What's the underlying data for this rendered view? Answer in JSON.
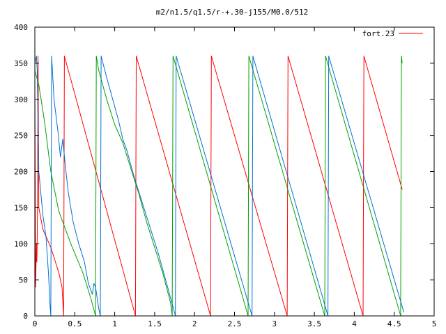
{
  "chart_data": {
    "type": "line",
    "title": "m2/n1.5/q1.5/r-+.30-j155/M0.0/512",
    "xlabel": "",
    "ylabel": "",
    "xlim": [
      0,
      5
    ],
    "ylim": [
      0,
      400
    ],
    "grid": false,
    "legend_placement": "top-right",
    "x_ticks": [
      "0",
      "0.5",
      "1",
      "1.5",
      "2",
      "2.5",
      "3",
      "3.5",
      "4",
      "4.5",
      "5"
    ],
    "y_ticks": [
      "0",
      "50",
      "100",
      "150",
      "200",
      "250",
      "300",
      "350",
      "400"
    ],
    "series": [
      {
        "name": "fort.23",
        "color": "#ff0000",
        "points": [
          [
            0.0,
            330
          ],
          [
            0.01,
            40
          ],
          [
            0.02,
            100
          ],
          [
            0.025,
            75
          ],
          [
            0.03,
            105
          ],
          [
            0.035,
            180
          ],
          [
            0.04,
            360
          ],
          [
            0.05,
            150
          ],
          [
            0.1,
            120
          ],
          [
            0.2,
            95
          ],
          [
            0.3,
            60
          ],
          [
            0.34,
            40
          ],
          [
            0.36,
            0
          ],
          [
            0.37,
            360
          ],
          [
            1.26,
            0
          ],
          [
            1.27,
            360
          ],
          [
            2.2,
            0
          ],
          [
            2.21,
            360
          ],
          [
            3.16,
            0
          ],
          [
            3.17,
            360
          ],
          [
            4.11,
            0
          ],
          [
            4.12,
            360
          ],
          [
            4.6,
            175
          ]
        ]
      },
      {
        "name": "",
        "color": "#00a000",
        "points": [
          [
            0.0,
            340
          ],
          [
            0.05,
            320
          ],
          [
            0.12,
            270
          ],
          [
            0.2,
            200
          ],
          [
            0.3,
            145
          ],
          [
            0.45,
            100
          ],
          [
            0.6,
            60
          ],
          [
            0.7,
            25
          ],
          [
            0.76,
            0
          ],
          [
            0.77,
            360
          ],
          [
            0.8,
            340
          ],
          [
            0.9,
            300
          ],
          [
            1.0,
            265
          ],
          [
            1.1,
            240
          ],
          [
            1.2,
            205
          ],
          [
            1.3,
            170
          ],
          [
            1.4,
            130
          ],
          [
            1.5,
            95
          ],
          [
            1.6,
            60
          ],
          [
            1.7,
            18
          ],
          [
            1.72,
            0
          ],
          [
            1.73,
            360
          ],
          [
            2.67,
            0
          ],
          [
            2.68,
            360
          ],
          [
            3.63,
            0
          ],
          [
            3.64,
            360
          ],
          [
            4.58,
            0
          ],
          [
            4.59,
            360
          ],
          [
            4.6,
            350
          ]
        ]
      },
      {
        "name": "",
        "color": "#0070d0",
        "points": [
          [
            0.0,
            350
          ],
          [
            0.02,
            360
          ],
          [
            0.03,
            340
          ],
          [
            0.05,
            200
          ],
          [
            0.1,
            140
          ],
          [
            0.14,
            110
          ],
          [
            0.17,
            60
          ],
          [
            0.19,
            15
          ],
          [
            0.2,
            0
          ],
          [
            0.21,
            360
          ],
          [
            0.24,
            300
          ],
          [
            0.29,
            255
          ],
          [
            0.32,
            220
          ],
          [
            0.35,
            245
          ],
          [
            0.38,
            210
          ],
          [
            0.42,
            170
          ],
          [
            0.48,
            130
          ],
          [
            0.55,
            100
          ],
          [
            0.62,
            75
          ],
          [
            0.67,
            45
          ],
          [
            0.72,
            30
          ],
          [
            0.74,
            45
          ],
          [
            0.76,
            40
          ],
          [
            0.8,
            10
          ],
          [
            0.82,
            0
          ],
          [
            0.83,
            360
          ],
          [
            0.9,
            330
          ],
          [
            1.0,
            290
          ],
          [
            1.05,
            270
          ],
          [
            1.1,
            245
          ],
          [
            1.15,
            230
          ],
          [
            1.2,
            210
          ],
          [
            1.25,
            190
          ],
          [
            1.35,
            155
          ],
          [
            1.45,
            120
          ],
          [
            1.55,
            85
          ],
          [
            1.65,
            45
          ],
          [
            1.76,
            0
          ],
          [
            1.77,
            360
          ],
          [
            2.72,
            0
          ],
          [
            2.73,
            360
          ],
          [
            3.67,
            0
          ],
          [
            3.68,
            360
          ],
          [
            4.62,
            5
          ]
        ]
      }
    ]
  }
}
